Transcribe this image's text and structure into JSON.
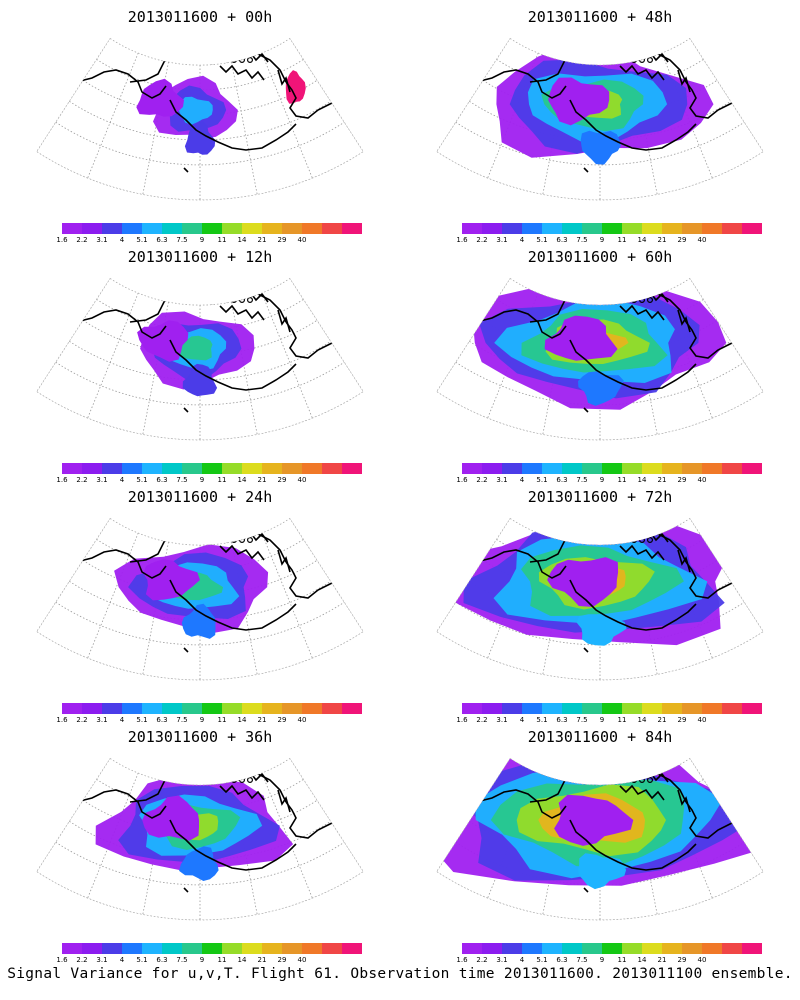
{
  "panels": [
    {
      "title": "2013011600 + 00h",
      "lead": 0
    },
    {
      "title": "2013011600 + 48h",
      "lead": 48
    },
    {
      "title": "2013011600 + 12h",
      "lead": 12
    },
    {
      "title": "2013011600 + 60h",
      "lead": 60
    },
    {
      "title": "2013011600 + 24h",
      "lead": 24
    },
    {
      "title": "2013011600 + 72h",
      "lead": 72
    },
    {
      "title": "2013011600 + 36h",
      "lead": 36
    },
    {
      "title": "2013011600 + 84h",
      "lead": 84
    }
  ],
  "colorbar": {
    "labels": [
      "1.6",
      "2.2",
      "3.1",
      "4",
      "5.1",
      "6.3",
      "7.5",
      "9",
      "11",
      "14",
      "21",
      "29",
      "40"
    ],
    "colors": [
      "#a020f0",
      "#8c1cf0",
      "#4b3ce8",
      "#1e78ff",
      "#1eb4ff",
      "#00c8c8",
      "#28c88c",
      "#14c814",
      "#96dc28",
      "#dcdc1e",
      "#e6b41e",
      "#e69628",
      "#f07828",
      "#f04646",
      "#f01478"
    ]
  },
  "caption": "Signal Variance for u,v,T. Flight 61. Observation time 2013011600. 2013011100 ensemble.",
  "icons": {
    "coast": "coastline-shape",
    "graticule": "lat-lon-grid"
  }
}
